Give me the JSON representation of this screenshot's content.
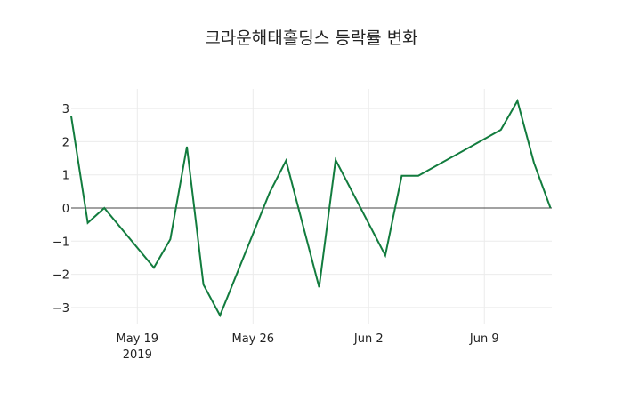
{
  "chart_data": {
    "type": "line",
    "title": "크라운해태홀딩스 등락률 변화",
    "xlabel": "",
    "ylabel": "",
    "x": [
      "2019-05-15",
      "2019-05-16",
      "2019-05-17",
      "2019-05-20",
      "2019-05-21",
      "2019-05-22",
      "2019-05-23",
      "2019-05-24",
      "2019-05-27",
      "2019-05-28",
      "2019-05-30",
      "2019-05-31",
      "2019-06-03",
      "2019-06-04",
      "2019-06-05",
      "2019-06-10",
      "2019-06-11",
      "2019-06-12",
      "2019-06-13"
    ],
    "series": [
      {
        "name": "등락률",
        "color": "#127C3E",
        "values": [
          2.77,
          -0.45,
          0.0,
          -1.8,
          -0.94,
          1.85,
          -2.31,
          -3.24,
          0.46,
          1.43,
          -2.39,
          1.45,
          -1.43,
          0.97,
          0.97,
          2.36,
          3.23,
          1.36,
          0.0
        ]
      }
    ],
    "x_ticks": [
      {
        "label": "May 19",
        "sub": "2019",
        "date": "2019-05-19"
      },
      {
        "label": "May 26",
        "sub": "",
        "date": "2019-05-26"
      },
      {
        "label": "Jun 2",
        "sub": "",
        "date": "2019-06-02"
      },
      {
        "label": "Jun 9",
        "sub": "",
        "date": "2019-06-09"
      }
    ],
    "y_ticks": [
      3,
      2,
      1,
      0,
      -1,
      -2,
      -3
    ],
    "y_tick_labels": [
      "3",
      "2",
      "1",
      "0",
      "−1",
      "−2",
      "−3"
    ],
    "ylim": [
      -3.5,
      3.6
    ],
    "grid": true,
    "zero_line": true,
    "legend": "none"
  }
}
